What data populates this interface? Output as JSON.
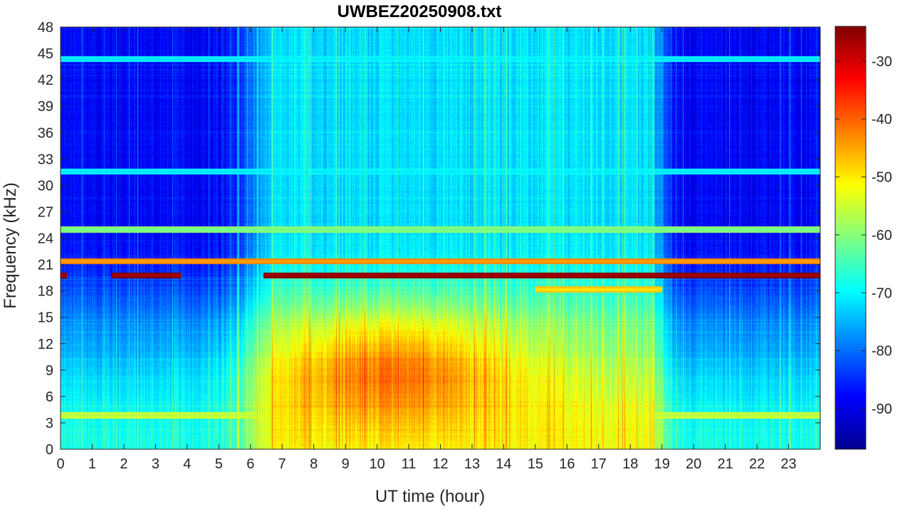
{
  "chart_data": {
    "type": "heatmap",
    "title": "UWBEZ20250908.txt",
    "xlabel": "UT time (hour)",
    "ylabel": "Frequency (kHz)",
    "xlim": [
      0,
      24
    ],
    "ylim": [
      0,
      48
    ],
    "x_ticks": [
      "0",
      "1",
      "2",
      "3",
      "4",
      "5",
      "6",
      "7",
      "8",
      "9",
      "10",
      "11",
      "12",
      "13",
      "14",
      "15",
      "16",
      "17",
      "18",
      "19",
      "20",
      "21",
      "22",
      "23"
    ],
    "y_ticks": [
      "0",
      "3",
      "6",
      "9",
      "12",
      "15",
      "18",
      "21",
      "24",
      "27",
      "30",
      "33",
      "36",
      "39",
      "42",
      "45",
      "48"
    ],
    "colorbar": {
      "colormap": "jet",
      "range": [
        -97,
        -24
      ],
      "ticks": [
        "-90",
        "-80",
        "-70",
        "-60",
        "-50",
        "-40",
        "-30"
      ]
    },
    "features": [
      {
        "kind": "horizontal_line",
        "freq_khz": 19.8,
        "t_start": 0,
        "t_end": 24,
        "level_db": -27,
        "note": "strong transmitter, gaps 0.2-1.6 h and 3.8-6.4 h"
      },
      {
        "kind": "horizontal_line",
        "freq_khz": 21.4,
        "t_start": 0,
        "t_end": 24,
        "level_db": -45
      },
      {
        "kind": "horizontal_line",
        "freq_khz": 25.0,
        "t_start": 0,
        "t_end": 24,
        "level_db": -62
      },
      {
        "kind": "horizontal_line",
        "freq_khz": 44.4,
        "t_start": 0,
        "t_end": 24,
        "level_db": -72
      },
      {
        "kind": "horizontal_line",
        "freq_khz": 31.6,
        "t_start": 0,
        "t_end": 24,
        "level_db": -72
      },
      {
        "kind": "horizontal_line",
        "freq_khz": 3.9,
        "t_start": 0,
        "t_end": 24,
        "level_db": -57
      },
      {
        "kind": "horizontal_line",
        "freq_khz": 18.2,
        "t_start": 15.0,
        "t_end": 19.0,
        "level_db": -50
      },
      {
        "kind": "broadband_region",
        "freq_khz": [
          4,
          15
        ],
        "t_start": 7,
        "t_end": 19,
        "peak_hour": 10.5,
        "level_db": -46
      },
      {
        "kind": "background_daytime",
        "t_start": 6.5,
        "t_end": 19,
        "level_db": -72
      },
      {
        "kind": "background_nighttime",
        "level_db": -88
      }
    ]
  }
}
